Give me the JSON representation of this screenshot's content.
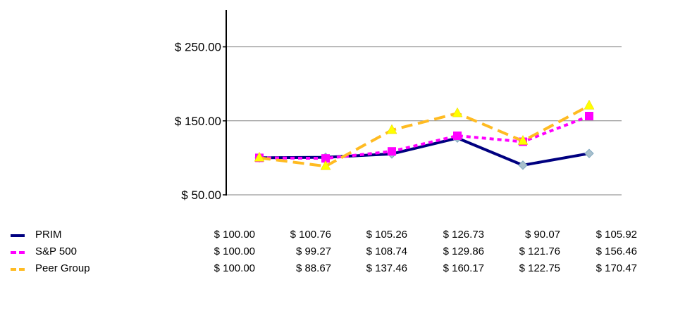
{
  "chart_data": {
    "type": "line",
    "title": "",
    "xlabel": "",
    "ylabel": "",
    "ylim": [
      50,
      300
    ],
    "yticks": [
      50,
      150,
      250
    ],
    "ytick_labels": [
      "$ 50.00",
      "$ 150.00",
      "$ 250.00"
    ],
    "grid": true,
    "legend_placement": "bottom-left",
    "series": [
      {
        "name": "PRIM",
        "color": "#000080",
        "dash": "solid",
        "marker": "diamond",
        "marker_color": "#a9c0cc",
        "values": [
          100.0,
          100.76,
          105.26,
          126.73,
          90.07,
          105.92
        ],
        "labels": [
          "$ 100.00",
          "$ 100.76",
          "$ 105.26",
          "$ 126.73",
          "$ 90.07",
          "$ 105.92"
        ]
      },
      {
        "name": "S&P 500",
        "color": "#ff00ff",
        "dash": "dotted",
        "marker": "square",
        "marker_color": "#ff00ff",
        "values": [
          100.0,
          99.27,
          108.74,
          129.86,
          121.76,
          156.46
        ],
        "labels": [
          "$ 100.00",
          "$ 99.27",
          "$ 108.74",
          "$ 129.86",
          "$ 121.76",
          "$ 156.46"
        ]
      },
      {
        "name": "Peer Group",
        "color": "#ffbb22",
        "dash": "dashed",
        "marker": "triangle",
        "marker_color": "#ffff00",
        "values": [
          100.0,
          88.67,
          137.46,
          160.17,
          122.75,
          170.47
        ],
        "labels": [
          "$ 100.00",
          "$ 88.67",
          "$ 137.46",
          "$ 160.17",
          "$ 122.75",
          "$ 170.47"
        ]
      }
    ]
  }
}
